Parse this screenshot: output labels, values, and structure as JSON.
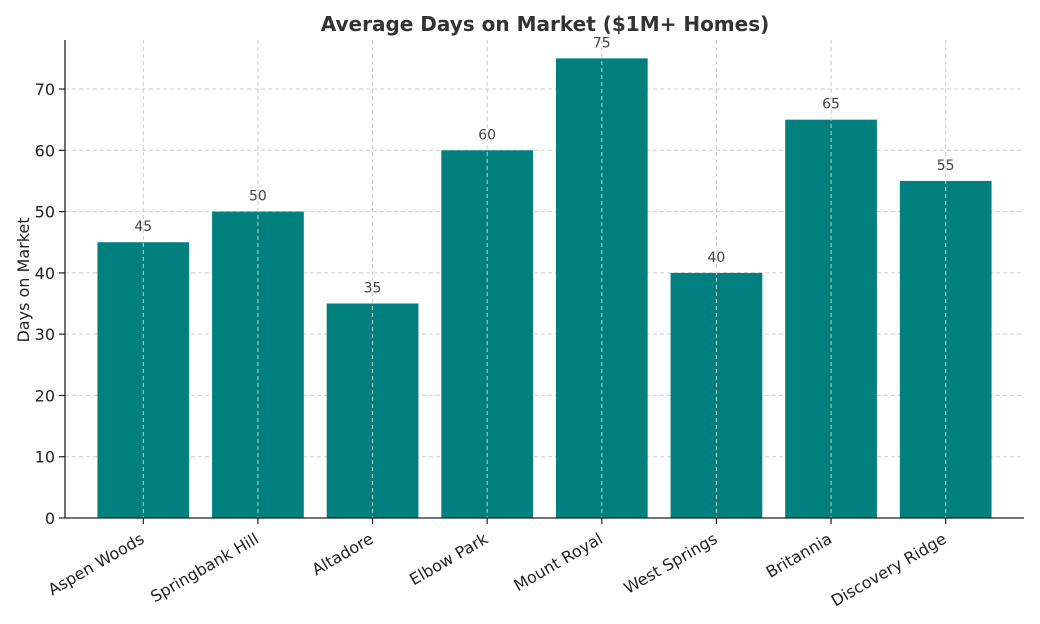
{
  "chart_data": {
    "type": "bar",
    "title": "Average Days on Market ($1M+ Homes)",
    "xlabel": "",
    "ylabel": "Days on Market",
    "categories": [
      "Aspen Woods",
      "Springbank Hill",
      "Altadore",
      "Elbow Park",
      "Mount Royal",
      "West Springs",
      "Britannia",
      "Discovery Ridge"
    ],
    "values": [
      45,
      50,
      35,
      60,
      75,
      40,
      65,
      55
    ],
    "ylim": [
      0,
      78
    ],
    "yticks": [
      0,
      10,
      20,
      30,
      40,
      50,
      60,
      70
    ],
    "grid": true,
    "bar_color": "#007f7f",
    "data_labels": true
  }
}
